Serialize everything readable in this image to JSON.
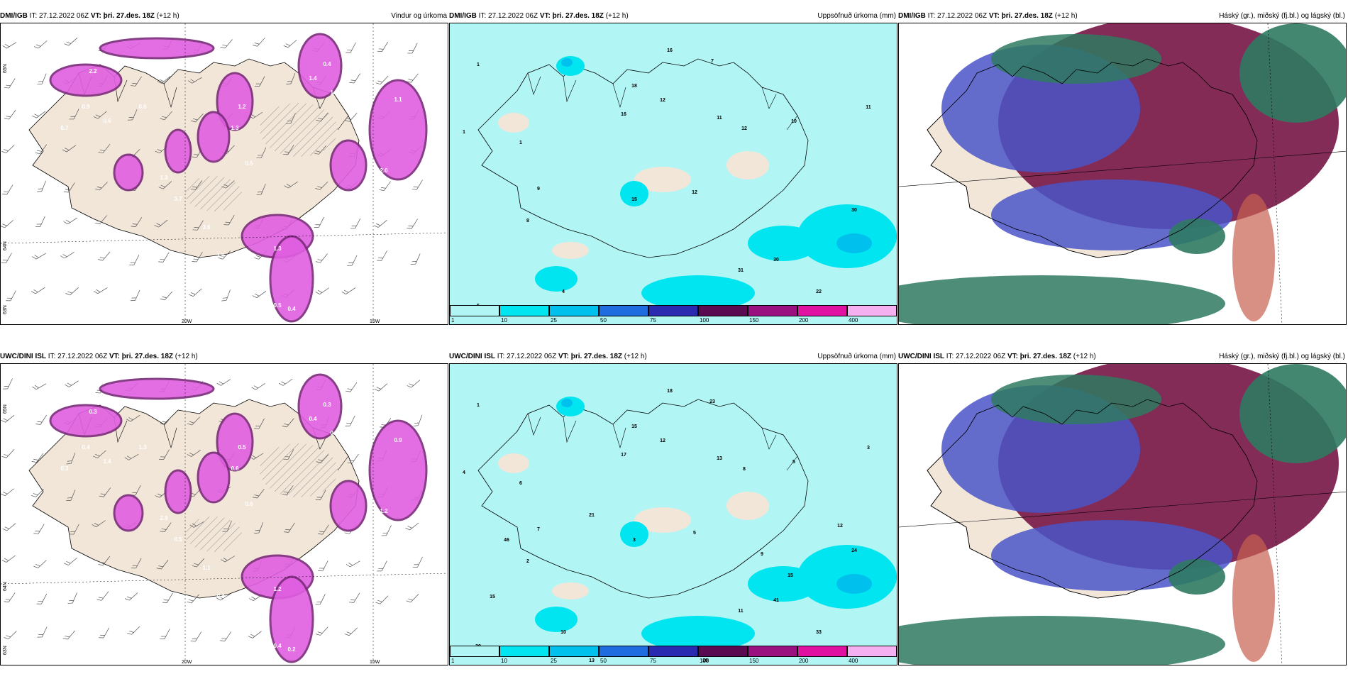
{
  "colors": {
    "sea_light": "#b2f5f5",
    "sea_white": "#ffffff",
    "land": "#f2e6d9",
    "precip_purple": "#e05ee0",
    "precip_dark": "#7a2a7a",
    "cloud_high": "#2f7a62",
    "cloud_mid": "#7a1a4a",
    "cloud_low": "#4a55c8"
  },
  "legend_colors": [
    "#b2f5f5",
    "#00e5ef",
    "#00c0ee",
    "#1f6ce0",
    "#2a2ab0",
    "#5a0a50",
    "#9a1080",
    "#e010a0",
    "#f4b0f0"
  ],
  "legend_ticks": [
    "1",
    "10",
    "25",
    "50",
    "75",
    "100",
    "150",
    "200",
    "400"
  ],
  "axes": {
    "lat_65": "65N",
    "lat_64": "64N",
    "lat_63": "63N",
    "lon_20": "20W",
    "lon_15": "15W"
  },
  "panels": [
    {
      "id": "p1",
      "source": "DMI/IGB",
      "it": "IT: 27.12.2022 06Z",
      "vt": "VT: þri. 27.des. 18Z",
      "lead": "(+12 h)",
      "title": "Vindur og úrkoma",
      "type": "wind",
      "labels": [
        "2.2",
        "0.9",
        "0.6",
        "0.7",
        "1.2",
        "1.3",
        "1.4",
        "1.4",
        "1.1",
        "2.0",
        "3.6",
        "3.8",
        "1.3",
        "1.0",
        "0.5",
        "0.4",
        "1.2",
        "1.0",
        "1.3",
        "3.7",
        "0.4",
        "0.3",
        "0.6",
        "0.5"
      ]
    },
    {
      "id": "p2",
      "source": "DMI/IGB",
      "it": "IT: 27.12.2022 06Z",
      "vt": "VT: þri. 27.des. 18Z",
      "lead": "(+12 h)",
      "title": "Uppsöfnuð úrkoma (mm)",
      "type": "accum",
      "labels": [
        "1",
        "16",
        "18",
        "16",
        "7",
        "12",
        "11",
        "12",
        "10",
        "11",
        "1",
        "1",
        "9",
        "15",
        "12",
        "8",
        "4",
        "31",
        "30",
        "22",
        "30",
        "5"
      ]
    },
    {
      "id": "p3",
      "source": "DMI/IGB",
      "it": "IT: 27.12.2022 06Z",
      "vt": "VT: þri. 27.des. 18Z",
      "lead": "(+12 h)",
      "title": "Háský (gr.), miðský (fj.bl.) og lágský (bl.)",
      "type": "cloud",
      "labels": []
    },
    {
      "id": "p4",
      "source": "UWC/DINI ISL",
      "it": "IT: 27.12.2022 06Z",
      "vt": "VT: þri. 27.des. 18Z",
      "lead": "(+12 h)",
      "title": "",
      "type": "wind",
      "labels": [
        "0.3",
        "0.4",
        "1.4",
        "0.3",
        "0.5",
        "0.6",
        "0.4",
        "0.3",
        "0.9",
        "1.2",
        "1.1",
        "0.7",
        "1.2",
        "0.3",
        "0.4",
        "0.2",
        "0.3",
        "0.4",
        "2.9",
        "0.5",
        "0.3",
        "3.0",
        "1.3",
        "0.6"
      ]
    },
    {
      "id": "p5",
      "source": "UWC/DINI ISL",
      "it": "IT: 27.12.2022 06Z",
      "vt": "VT: þri. 27.des. 18Z",
      "lead": "(+12 h)",
      "title": "Uppsöfnuð úrkoma (mm)",
      "type": "accum",
      "labels": [
        "1",
        "18",
        "15",
        "17",
        "23",
        "12",
        "13",
        "8",
        "5",
        "3",
        "4",
        "6",
        "7",
        "3",
        "5",
        "2",
        "10",
        "11",
        "41",
        "33",
        "24",
        "39",
        "46",
        "21",
        "15",
        "12",
        "20",
        "15",
        "9",
        "13"
      ]
    },
    {
      "id": "p6",
      "source": "UWC/DINI ISL",
      "it": "IT: 27.12.2022 06Z",
      "vt": "VT: þri. 27.des. 18Z",
      "lead": "(+12 h)",
      "title": "Háský (gr.), miðský (fj.bl.) og lágský (bl.)",
      "type": "cloud",
      "labels": []
    }
  ]
}
